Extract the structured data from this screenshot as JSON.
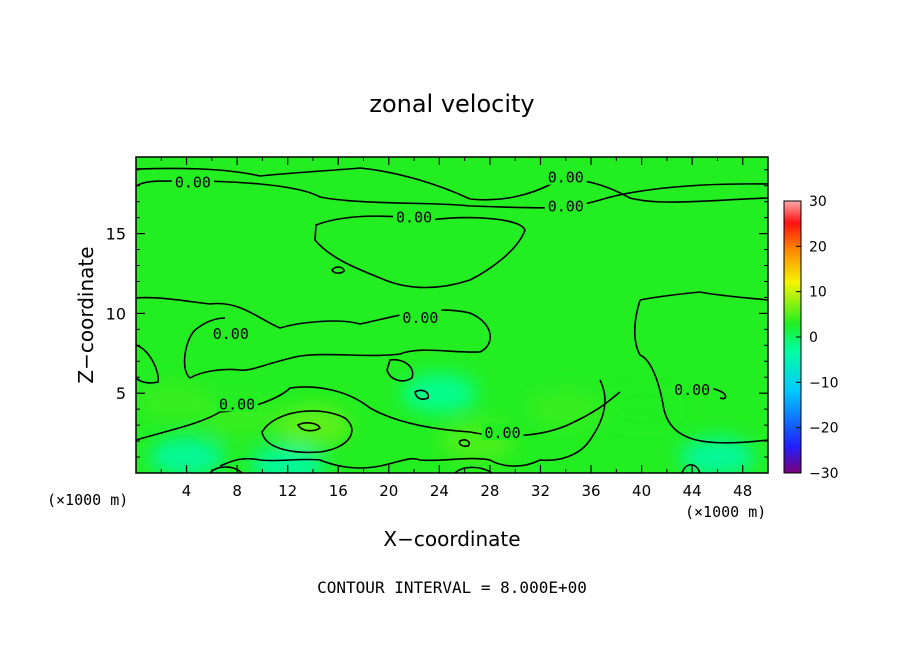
{
  "chart_data": {
    "type": "heatmap",
    "title": "zonal velocity",
    "xlabel": "X−coordinate",
    "ylabel": "Z−coordinate",
    "x_unit_left": "(×1000 m)",
    "x_unit_right": "(×1000 m)",
    "xlim": [
      0,
      50
    ],
    "ylim": [
      0,
      19.8
    ],
    "x_ticks": [
      4,
      8,
      12,
      16,
      20,
      24,
      28,
      32,
      36,
      40,
      44,
      48
    ],
    "y_ticks": [
      5,
      10,
      15
    ],
    "field_background": "#22ee22",
    "field_patches": [
      {
        "x": 8,
        "z": 3.5,
        "value": 4
      },
      {
        "x": 14,
        "z": 3,
        "value": 6
      },
      {
        "x": 3,
        "z": 4.5,
        "value": 4
      },
      {
        "x": 24,
        "z": 5,
        "value": -3
      },
      {
        "x": 27,
        "z": 2,
        "value": 5
      },
      {
        "x": 12,
        "z": 0.5,
        "value": -4
      },
      {
        "x": 4,
        "z": 1,
        "value": -4
      },
      {
        "x": 46,
        "z": 1,
        "value": -4
      },
      {
        "x": 40,
        "z": 4,
        "value": 3
      },
      {
        "x": 34,
        "z": 4,
        "value": 4
      }
    ],
    "contour_labels": [
      {
        "x": 4.5,
        "z": 18.2,
        "text": "0.00"
      },
      {
        "x": 22,
        "z": 16,
        "text": "0.00"
      },
      {
        "x": 34,
        "z": 18.5,
        "text": "0.00"
      },
      {
        "x": 34,
        "z": 16.7,
        "text": "0.00"
      },
      {
        "x": 7.5,
        "z": 8.7,
        "text": "0.00"
      },
      {
        "x": 22.5,
        "z": 9.7,
        "text": "0.00"
      },
      {
        "x": 8,
        "z": 4.3,
        "text": "0.00"
      },
      {
        "x": 29,
        "z": 2.5,
        "text": "0.00"
      },
      {
        "x": 44,
        "z": 5.2,
        "text": "0.00"
      }
    ],
    "colorbar": {
      "ticks": [
        30,
        20,
        10,
        0,
        -10,
        -20,
        -30
      ],
      "range": [
        -30,
        30
      ]
    },
    "footer": "CONTOUR INTERVAL = 8.000E+00"
  }
}
